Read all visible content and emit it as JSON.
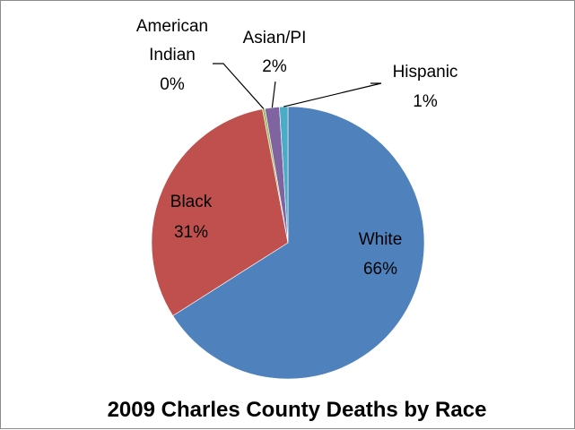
{
  "chart_data": {
    "type": "pie",
    "title": "2009 Charles County Deaths by Race",
    "slices": [
      {
        "name": "White",
        "value": 66,
        "percent_label": "66%",
        "color": "#4f81bd"
      },
      {
        "name": "Black",
        "value": 31,
        "percent_label": "31%",
        "color": "#c0504d"
      },
      {
        "name": "American Indian",
        "name_lines": [
          "American",
          "Indian"
        ],
        "value": 0.3,
        "percent_label": "0%",
        "color": "#9bbb59"
      },
      {
        "name": "Asian/PI",
        "value": 1.7,
        "percent_label": "2%",
        "color": "#8064a2"
      },
      {
        "name": "Hispanic",
        "value": 1,
        "percent_label": "1%",
        "color": "#4bacc6"
      }
    ],
    "legend": "none"
  }
}
